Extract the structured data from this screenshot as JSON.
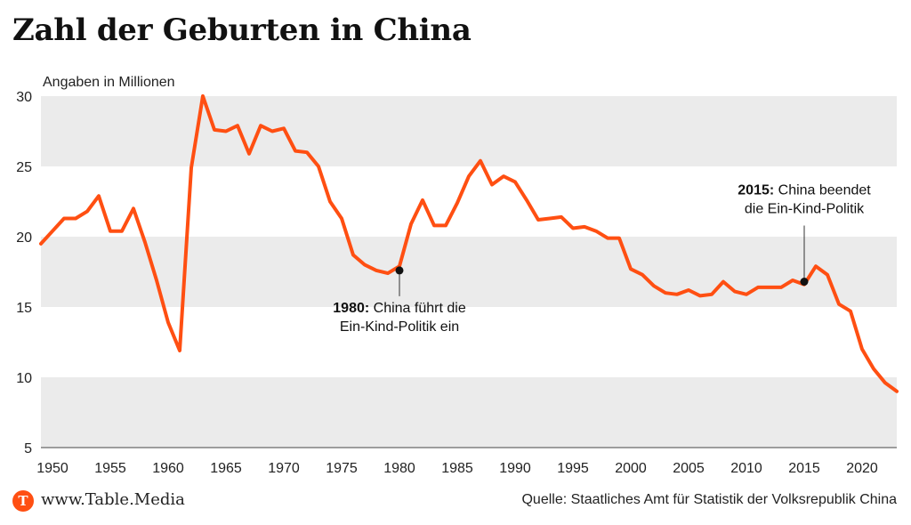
{
  "colors": {
    "line": "#ff4f12",
    "band": "#ebebeb",
    "text": "#222222",
    "logo": "#ff4f12"
  },
  "chart_data": {
    "type": "line",
    "title": "Zahl der Geburten in China",
    "ylabel": "Angaben in Millionen",
    "xlabel": "",
    "ylim": [
      5,
      30
    ],
    "xlim": [
      1949,
      2023
    ],
    "yticks": [
      5,
      10,
      15,
      20,
      25,
      30
    ],
    "xticks": [
      1950,
      1955,
      1960,
      1965,
      1970,
      1975,
      1980,
      1985,
      1990,
      1995,
      2000,
      2005,
      2010,
      2015,
      2020
    ],
    "grid": "alternating horizontal bands",
    "series": [
      {
        "name": "Geburten",
        "x": [
          1949,
          1950,
          1951,
          1952,
          1953,
          1954,
          1955,
          1956,
          1957,
          1958,
          1959,
          1960,
          1961,
          1962,
          1963,
          1964,
          1965,
          1966,
          1967,
          1968,
          1969,
          1970,
          1971,
          1972,
          1973,
          1974,
          1975,
          1976,
          1977,
          1978,
          1979,
          1980,
          1981,
          1982,
          1983,
          1984,
          1985,
          1986,
          1987,
          1988,
          1989,
          1990,
          1991,
          1992,
          1993,
          1994,
          1995,
          1996,
          1997,
          1998,
          1999,
          2000,
          2001,
          2002,
          2003,
          2004,
          2005,
          2006,
          2007,
          2008,
          2009,
          2010,
          2011,
          2012,
          2013,
          2014,
          2015,
          2016,
          2017,
          2018,
          2019,
          2020,
          2021,
          2022,
          2023
        ],
        "values": [
          19.5,
          20.4,
          21.3,
          21.3,
          21.8,
          22.9,
          20.4,
          20.4,
          22.0,
          19.6,
          16.9,
          13.9,
          11.9,
          24.9,
          30.0,
          27.6,
          27.5,
          27.9,
          25.9,
          27.9,
          27.5,
          27.7,
          26.1,
          26.0,
          25.0,
          22.5,
          21.3,
          18.7,
          18.0,
          17.6,
          17.4,
          17.9,
          20.9,
          22.6,
          20.8,
          20.8,
          22.4,
          24.3,
          25.4,
          23.7,
          24.3,
          23.9,
          22.6,
          21.2,
          21.3,
          21.4,
          20.6,
          20.7,
          20.4,
          19.9,
          19.9,
          17.7,
          17.3,
          16.5,
          16.0,
          15.9,
          16.2,
          15.8,
          15.9,
          16.8,
          16.1,
          15.9,
          16.4,
          16.4,
          16.4,
          16.9,
          16.6,
          17.9,
          17.3,
          15.2,
          14.7,
          12.0,
          10.6,
          9.6,
          9.0
        ]
      }
    ],
    "annotations": [
      {
        "x": 1980,
        "y": 17.6,
        "bold": "1980:",
        "text_line1": " China führt die",
        "text_line2": "Ein-Kind-Politik ein",
        "placement": "below"
      },
      {
        "x": 2015,
        "y": 16.8,
        "bold": "2015:",
        "text_line1": " China beendet",
        "text_line2": "die Ein-Kind-Politik",
        "placement": "above"
      }
    ]
  },
  "footer": {
    "logo_letter": "T",
    "site": "www.Table.Media",
    "source": "Quelle: Staatliches Amt für Statistik der Volksrepublik China"
  }
}
